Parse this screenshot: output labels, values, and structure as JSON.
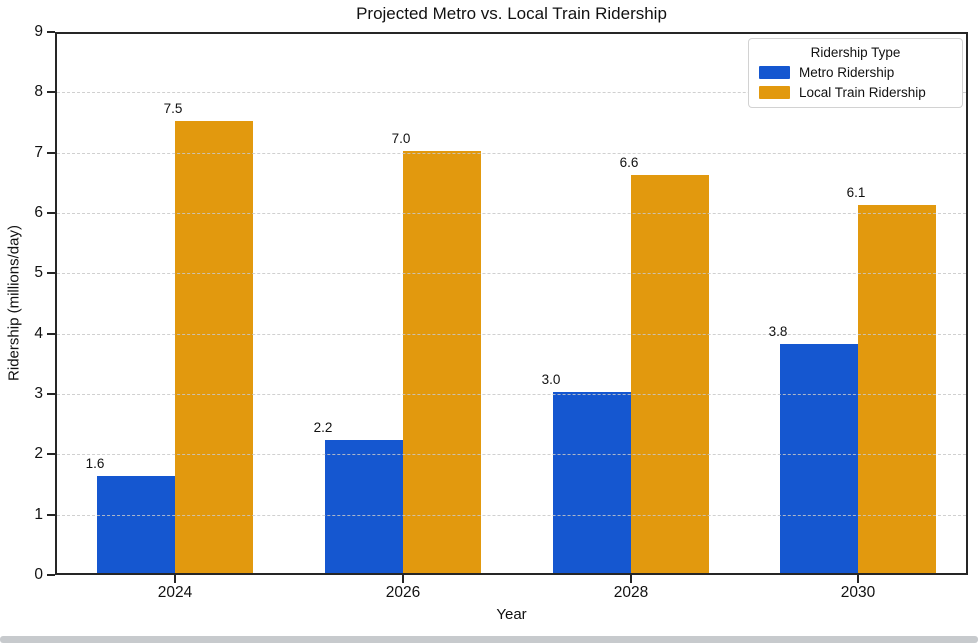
{
  "chart_data": {
    "type": "bar",
    "title": "Projected Metro vs. Local Train Ridership",
    "xlabel": "Year",
    "ylabel": "Ridership (millions/day)",
    "categories": [
      "2024",
      "2026",
      "2028",
      "2030"
    ],
    "series": [
      {
        "name": "Metro Ridership",
        "color": "#1557D0",
        "values": [
          1.6,
          2.2,
          3.0,
          3.8
        ],
        "value_labels": [
          "1.6",
          "2.2",
          "3.0",
          "3.8"
        ]
      },
      {
        "name": "Local Train Ridership",
        "color": "#E2990E",
        "values": [
          7.5,
          7.0,
          6.6,
          6.1
        ],
        "value_labels": [
          "7.5",
          "7.0",
          "6.6",
          "6.1"
        ]
      }
    ],
    "ylim": [
      0,
      9
    ],
    "yticks": [
      0,
      1,
      2,
      3,
      4,
      5,
      6,
      7,
      8,
      9
    ],
    "ytick_labels": [
      "0",
      "1",
      "2",
      "3",
      "4",
      "5",
      "6",
      "7",
      "8",
      "9"
    ],
    "grid": "horizontal-dashed",
    "grid_color": "#c8c8c8",
    "axis_color": "#262626",
    "legend_title": "Ridership Type",
    "legend_position": "upper right"
  }
}
